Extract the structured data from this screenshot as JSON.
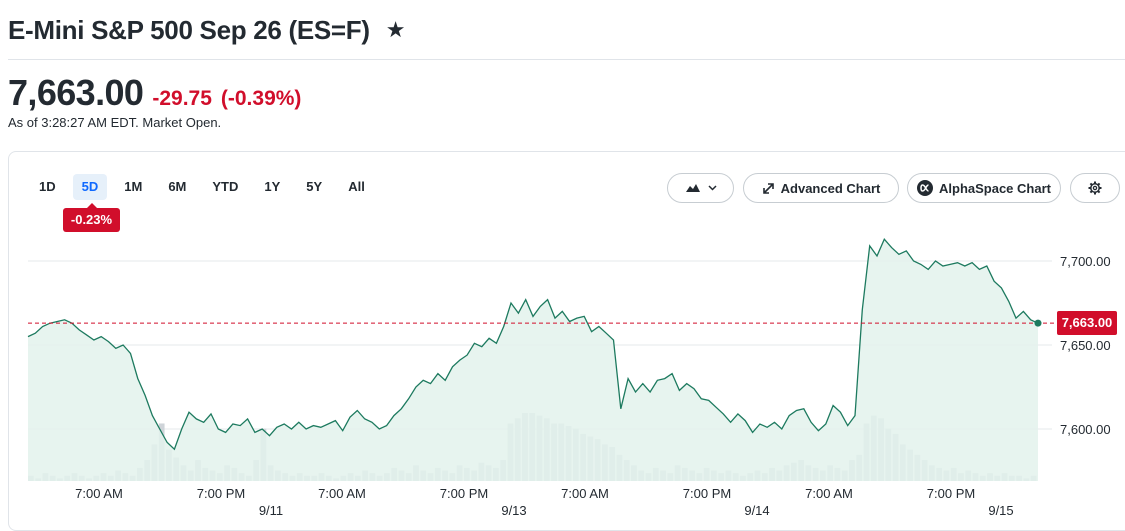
{
  "header": {
    "title": "E-Mini S&P 500 Sep 26 (ES=F)",
    "star_icon": "star-icon"
  },
  "quote": {
    "price": "7,663.00",
    "change": "-29.75",
    "change_percent": "(-0.39%)",
    "as_of": "As of 3:28:27 AM EDT. Market Open."
  },
  "ranges": {
    "items": [
      "1D",
      "5D",
      "1M",
      "6M",
      "YTD",
      "1Y",
      "5Y",
      "All"
    ],
    "selected": "5D",
    "selected_change": "-0.23%"
  },
  "toolbar": {
    "chart_type_icon": "mountain-chart-icon",
    "dropdown_icon": "chevron-down-icon",
    "advanced_icon": "expand-arrows-icon",
    "advanced_label": "Advanced Chart",
    "alphaspace_icon": "alphaspace-logo-icon",
    "alphaspace_label": "AlphaSpace Chart",
    "settings_icon": "gear-icon"
  },
  "colors": {
    "line": "#1d7a5f",
    "area_fill": "#e3f2ec",
    "negative": "#d10e2b",
    "volume": "#cfd4d9",
    "gridline": "#e6e8eb"
  },
  "chart_data": {
    "type": "area",
    "ylim": [
      7585,
      7720
    ],
    "y_ticks": [
      7600,
      7650,
      7700
    ],
    "y_tick_labels": [
      "7,600.00",
      "7,650.00",
      "7,700.00"
    ],
    "x_tick_labels": [
      [
        "7:00 AM",
        ""
      ],
      [
        "7:00 PM",
        "9/11"
      ],
      [
        "7:00 AM",
        ""
      ],
      [
        "7:00 PM",
        "9/13"
      ],
      [
        "7:00 AM",
        ""
      ],
      [
        "7:00 PM",
        "9/14"
      ],
      [
        "7:00 AM",
        ""
      ],
      [
        "7:00 PM",
        "9/15"
      ]
    ],
    "reference_line": 7663,
    "last_value": 7663,
    "last_value_label": "7,663.00",
    "grid": true,
    "series": [
      {
        "values": [
          7655,
          7657,
          7661,
          7663,
          7664,
          7665,
          7663,
          7659,
          7656,
          7653,
          7655,
          7652,
          7648,
          7650,
          7645,
          7630,
          7620,
          7608,
          7600,
          7592,
          7588,
          7600,
          7610,
          7606,
          7604,
          7609,
          7600,
          7598,
          7603,
          7602,
          7606,
          7598,
          7600,
          7596,
          7601,
          7603,
          7600,
          7604,
          7600,
          7602,
          7601,
          7603,
          7605,
          7599,
          7607,
          7611,
          7606,
          7604,
          7600,
          7602,
          7608,
          7612,
          7618,
          7625,
          7629,
          7627,
          7633,
          7629,
          7637,
          7641,
          7644,
          7651,
          7649,
          7654,
          7651,
          7661,
          7675,
          7669,
          7677,
          7667,
          7673,
          7677,
          7666,
          7670,
          7664,
          7666,
          7667,
          7658,
          7661,
          7657,
          7653,
          7612,
          7630,
          7622,
          7627,
          7622,
          7629,
          7630,
          7633,
          7623,
          7627,
          7624,
          7618,
          7617,
          7613,
          7609,
          7604,
          7609,
          7605,
          7598,
          7603,
          7601,
          7604,
          7600,
          7608,
          7611,
          7612,
          7604,
          7599,
          7603,
          7614,
          7610,
          7602,
          7608,
          7671,
          7709,
          7703,
          7713,
          7708,
          7704,
          7706,
          7700,
          7698,
          7695,
          7700,
          7697,
          7698,
          7699,
          7697,
          7699,
          7695,
          7697,
          7688,
          7684,
          7676,
          7666,
          7670,
          7665,
          7663
        ]
      }
    ],
    "volume": [
      2,
      1,
      3,
      2,
      1,
      2,
      3,
      2,
      1,
      2,
      3,
      2,
      4,
      3,
      2,
      5,
      8,
      14,
      22,
      12,
      9,
      6,
      4,
      8,
      5,
      4,
      3,
      6,
      5,
      3,
      2,
      8,
      20,
      6,
      4,
      3,
      2,
      3,
      2,
      2,
      3,
      2,
      1,
      2,
      3,
      2,
      4,
      3,
      2,
      3,
      5,
      4,
      3,
      6,
      4,
      3,
      5,
      4,
      3,
      6,
      5,
      4,
      7,
      6,
      5,
      8,
      22,
      24,
      26,
      26,
      25,
      24,
      22,
      22,
      21,
      20,
      18,
      17,
      16,
      14,
      13,
      10,
      8,
      6,
      4,
      3,
      5,
      4,
      3,
      6,
      5,
      4,
      3,
      5,
      4,
      3,
      4,
      3,
      2,
      3,
      4,
      3,
      5,
      4,
      6,
      7,
      8,
      6,
      5,
      4,
      6,
      5,
      4,
      8,
      10,
      22,
      25,
      24,
      20,
      18,
      14,
      12,
      10,
      8,
      6,
      5,
      4,
      5,
      3,
      4,
      3,
      2,
      3,
      2,
      3,
      2,
      2,
      1,
      2
    ]
  }
}
